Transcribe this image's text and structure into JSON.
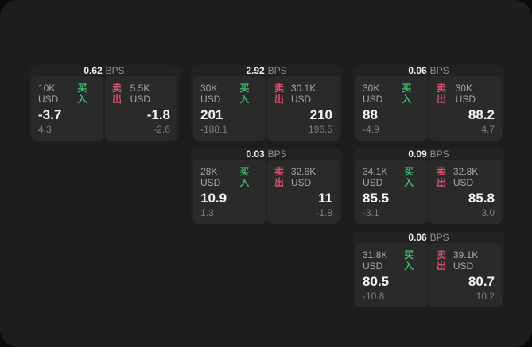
{
  "labels": {
    "bps_unit": "BPS",
    "buy": "买入",
    "sell": "卖出"
  },
  "colors": {
    "background": "#0a0a0a",
    "surface": "#1d1d1e",
    "card": "#222223",
    "panel": "#2a2a2b",
    "buy_green": "#3dbb6d",
    "sell_red": "#d8506e",
    "value_white": "#f5f5f5",
    "label_gray": "#a6a6a6",
    "sub_gray": "#7e7e7e"
  },
  "cards": [
    {
      "bps": "0.62",
      "buy": {
        "amount": "10K USD",
        "price": "-3.7",
        "change": "4.3"
      },
      "sell": {
        "amount": "5.5K USD",
        "price": "-1.8",
        "change": "-2.6"
      }
    },
    {
      "bps": "2.92",
      "buy": {
        "amount": "30K USD",
        "price": "201",
        "change": "-188.1"
      },
      "sell": {
        "amount": "30.1K USD",
        "price": "210",
        "change": "196.5"
      }
    },
    {
      "bps": "0.06",
      "buy": {
        "amount": "30K USD",
        "price": "88",
        "change": "-4.9"
      },
      "sell": {
        "amount": "30K USD",
        "price": "88.2",
        "change": "4.7"
      }
    },
    {
      "bps": "0.03",
      "buy": {
        "amount": "28K USD",
        "price": "10.9",
        "change": "1.3"
      },
      "sell": {
        "amount": "32.6K USD",
        "price": "11",
        "change": "-1.8"
      }
    },
    {
      "bps": "0.09",
      "buy": {
        "amount": "34.1K USD",
        "price": "85.5",
        "change": "-3.1"
      },
      "sell": {
        "amount": "32.8K USD",
        "price": "85.8",
        "change": "3.0"
      }
    },
    {
      "bps": "0.06",
      "buy": {
        "amount": "31.8K USD",
        "price": "80.5",
        "change": "-10.8"
      },
      "sell": {
        "amount": "39.1K USD",
        "price": "80.7",
        "change": "10.2"
      }
    }
  ]
}
